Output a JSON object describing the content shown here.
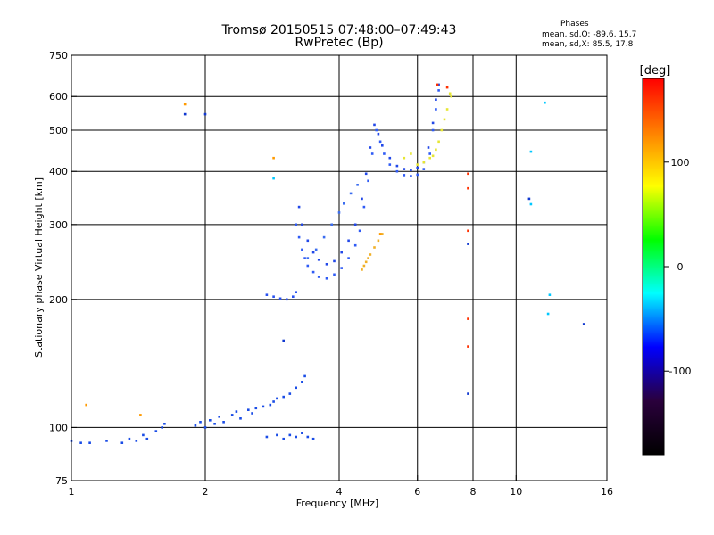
{
  "header": {
    "title_line1": "Tromsø 20150515 07:48:00–07:49:43",
    "title_line2": "RwPretec (Bp)",
    "phases_heading": "Phases",
    "phases_o": "mean, sd,O: -89.6, 15.7",
    "phases_x": "mean, sd,X:  85.5, 17.8"
  },
  "chart_data": {
    "type": "scatter",
    "xlabel": "Frequency [MHz]",
    "ylabel": "Stationary phase Virtual Height [km]",
    "xscale": "log",
    "yscale": "log",
    "xlim": [
      1,
      16
    ],
    "ylim": [
      75,
      750
    ],
    "xticks": [
      1,
      2,
      4,
      6,
      8,
      10,
      16
    ],
    "yticks": [
      75,
      100,
      200,
      300,
      400,
      500,
      600,
      750
    ],
    "vgrid": [
      2,
      4,
      6,
      8,
      10
    ],
    "hgrid": [
      100,
      200,
      300,
      400,
      500,
      600
    ],
    "colorbar": {
      "label": "[deg]",
      "range": [
        -180,
        180
      ],
      "ticks": [
        100,
        0,
        -100
      ],
      "colors": [
        "#ff0000",
        "#ff8000",
        "#ffff00",
        "#00ff00",
        "#00ffff",
        "#0000ff",
        "#2a003c",
        "#000000"
      ]
    },
    "point_groups": [
      {
        "color": "#1a4ce6",
        "points": [
          [
            1.0,
            93
          ],
          [
            1.05,
            92
          ],
          [
            1.1,
            92
          ],
          [
            1.2,
            93
          ],
          [
            1.3,
            92
          ],
          [
            1.35,
            94
          ],
          [
            1.4,
            93
          ],
          [
            1.45,
            96
          ],
          [
            1.48,
            94
          ],
          [
            1.55,
            98
          ],
          [
            1.6,
            100
          ],
          [
            1.62,
            102
          ]
        ]
      },
      {
        "color": "#1a4ce6",
        "points": [
          [
            1.9,
            101
          ],
          [
            1.95,
            103
          ],
          [
            2.0,
            100
          ],
          [
            2.05,
            104
          ],
          [
            2.1,
            102
          ],
          [
            2.15,
            106
          ],
          [
            2.2,
            103
          ],
          [
            2.3,
            107
          ],
          [
            2.35,
            109
          ],
          [
            2.4,
            105
          ],
          [
            2.5,
            110
          ],
          [
            2.55,
            108
          ],
          [
            2.6,
            111
          ],
          [
            2.7,
            112
          ],
          [
            2.8,
            113
          ],
          [
            2.85,
            115
          ],
          [
            2.9,
            117
          ],
          [
            3.0,
            118
          ],
          [
            3.1,
            120
          ],
          [
            3.2,
            124
          ],
          [
            3.3,
            128
          ],
          [
            3.35,
            132
          ]
        ]
      },
      {
        "color": "#1a4ce6",
        "points": [
          [
            2.75,
            95
          ],
          [
            2.9,
            96
          ],
          [
            3.0,
            94
          ],
          [
            3.1,
            96
          ],
          [
            3.2,
            95
          ],
          [
            3.3,
            97
          ],
          [
            3.4,
            95
          ],
          [
            3.5,
            94
          ]
        ]
      },
      {
        "color": "#2952f0",
        "points": [
          [
            2.75,
            205
          ],
          [
            2.85,
            203
          ],
          [
            2.95,
            201
          ],
          [
            3.05,
            200
          ],
          [
            3.15,
            203
          ],
          [
            3.2,
            208
          ]
        ]
      },
      {
        "color": "#2f5bf5",
        "points": [
          [
            3.2,
            300
          ],
          [
            3.25,
            280
          ],
          [
            3.3,
            262
          ],
          [
            3.35,
            250
          ],
          [
            3.4,
            240
          ],
          [
            3.5,
            232
          ],
          [
            3.6,
            226
          ],
          [
            3.75,
            224
          ],
          [
            3.9,
            229
          ],
          [
            4.05,
            237
          ],
          [
            4.2,
            250
          ],
          [
            4.35,
            268
          ],
          [
            4.45,
            290
          ],
          [
            4.55,
            330
          ],
          [
            4.65,
            380
          ],
          [
            4.75,
            440
          ],
          [
            4.85,
            500
          ],
          [
            4.95,
            470
          ],
          [
            5.05,
            440
          ],
          [
            5.2,
            415
          ],
          [
            5.4,
            400
          ],
          [
            5.6,
            392
          ],
          [
            5.8,
            390
          ],
          [
            6.0,
            393
          ],
          [
            6.2,
            405
          ],
          [
            6.4,
            440
          ],
          [
            6.5,
            500
          ],
          [
            6.6,
            560
          ],
          [
            6.7,
            620
          ]
        ]
      },
      {
        "color": "#2248e8",
        "points": [
          [
            3.25,
            330
          ],
          [
            3.3,
            300
          ],
          [
            3.4,
            275
          ],
          [
            3.5,
            258
          ],
          [
            3.6,
            248
          ],
          [
            3.75,
            242
          ],
          [
            3.9,
            246
          ],
          [
            4.05,
            258
          ],
          [
            4.2,
            275
          ],
          [
            4.35,
            300
          ],
          [
            4.5,
            345
          ],
          [
            4.6,
            395
          ],
          [
            4.7,
            455
          ],
          [
            4.8,
            515
          ],
          [
            4.9,
            490
          ],
          [
            5.0,
            460
          ],
          [
            5.2,
            430
          ],
          [
            5.4,
            412
          ],
          [
            5.6,
            405
          ],
          [
            5.8,
            403
          ],
          [
            6.0,
            408
          ],
          [
            6.2,
            420
          ],
          [
            6.35,
            455
          ],
          [
            6.5,
            520
          ],
          [
            6.6,
            590
          ],
          [
            6.7,
            640
          ]
        ]
      },
      {
        "color": "#3a6cf0",
        "points": [
          [
            3.4,
            250
          ],
          [
            3.55,
            262
          ],
          [
            3.7,
            280
          ],
          [
            3.85,
            300
          ],
          [
            4.0,
            320
          ],
          [
            4.1,
            336
          ],
          [
            4.25,
            355
          ],
          [
            4.4,
            372
          ]
        ]
      },
      {
        "color": "#e6e633",
        "points": [
          [
            5.6,
            430
          ],
          [
            5.8,
            440
          ],
          [
            6.0,
            415
          ],
          [
            6.2,
            420
          ],
          [
            6.4,
            430
          ],
          [
            6.5,
            435
          ],
          [
            6.6,
            450
          ],
          [
            6.7,
            470
          ],
          [
            6.8,
            500
          ],
          [
            6.9,
            530
          ],
          [
            7.0,
            560
          ],
          [
            7.1,
            610
          ],
          [
            7.15,
            600
          ]
        ]
      },
      {
        "color": "#f0b028",
        "points": [
          [
            4.5,
            235
          ],
          [
            4.6,
            245
          ],
          [
            4.7,
            255
          ],
          [
            4.8,
            265
          ],
          [
            4.9,
            275
          ],
          [
            5.0,
            285
          ],
          [
            4.55,
            240
          ],
          [
            4.65,
            250
          ]
        ]
      },
      {
        "color": "#ff9a00",
        "points": [
          [
            1.08,
            113
          ],
          [
            1.43,
            107
          ],
          [
            1.8,
            575
          ],
          [
            2.85,
            430
          ],
          [
            4.95,
            285
          ]
        ]
      },
      {
        "color": "#ff3000",
        "points": [
          [
            6.65,
            640
          ],
          [
            7.0,
            630
          ],
          [
            7.8,
            395
          ],
          [
            7.8,
            365
          ],
          [
            7.8,
            290
          ],
          [
            7.8,
            180
          ],
          [
            7.8,
            155
          ]
        ]
      },
      {
        "color": "#00c8ff",
        "points": [
          [
            10.8,
            445
          ],
          [
            10.8,
            335
          ],
          [
            11.6,
            580
          ],
          [
            11.9,
            205
          ],
          [
            11.8,
            185
          ],
          [
            2.85,
            385
          ]
        ]
      },
      {
        "color": "#1038d0",
        "points": [
          [
            1.8,
            545
          ],
          [
            2.0,
            545
          ],
          [
            10.7,
            345
          ],
          [
            7.8,
            270
          ],
          [
            7.8,
            120
          ],
          [
            14.2,
            175
          ],
          [
            3.0,
            160
          ]
        ]
      }
    ]
  }
}
